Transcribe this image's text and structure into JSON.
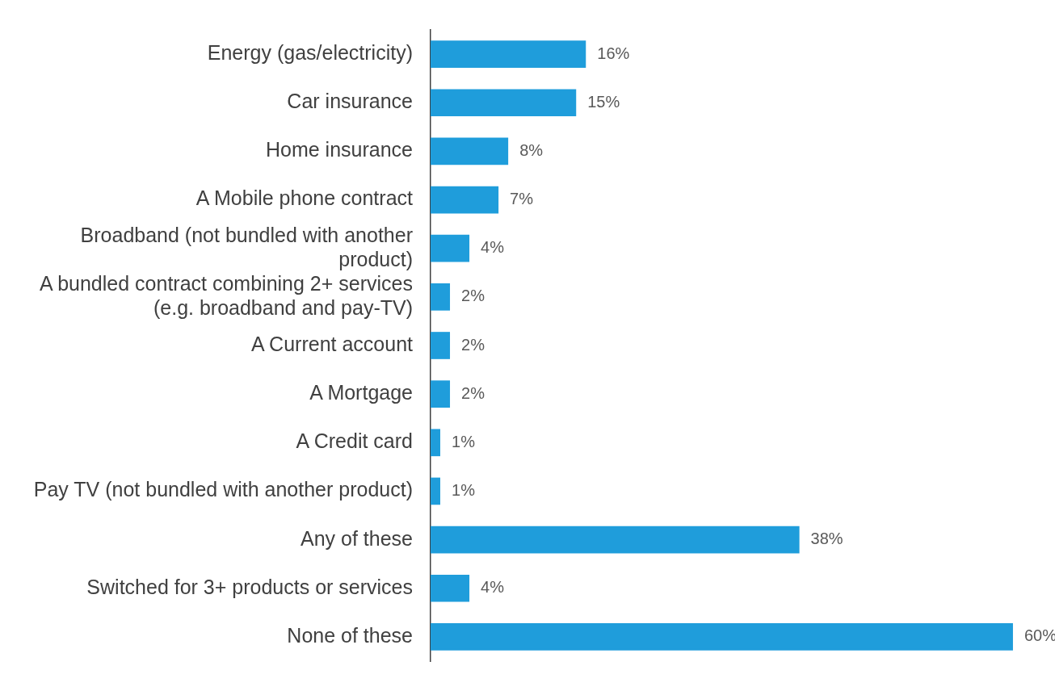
{
  "chart_data": {
    "type": "bar",
    "orientation": "horizontal",
    "categories": [
      "Energy (gas/electricity)",
      "Car insurance",
      "Home insurance",
      "A Mobile phone contract",
      "Broadband (not bundled with another product)",
      "A bundled contract combining 2+ services (e.g. broadband and pay-TV)",
      "A Current account",
      "A Mortgage",
      "A Credit card",
      "Pay TV (not bundled with another product)",
      "Any of these",
      "Switched for 3+ products or services",
      "None of these"
    ],
    "values": [
      16,
      15,
      8,
      7,
      4,
      2,
      2,
      2,
      1,
      1,
      38,
      4,
      60
    ],
    "color": "#1f9ddb",
    "data_labels": true,
    "value_labels": [
      "16%",
      "15%",
      "8%",
      "7%",
      "4%",
      "2%",
      "2%",
      "2%",
      "1%",
      "1%",
      "38%",
      "4%",
      "60%"
    ],
    "grid": false,
    "legend": false
  }
}
